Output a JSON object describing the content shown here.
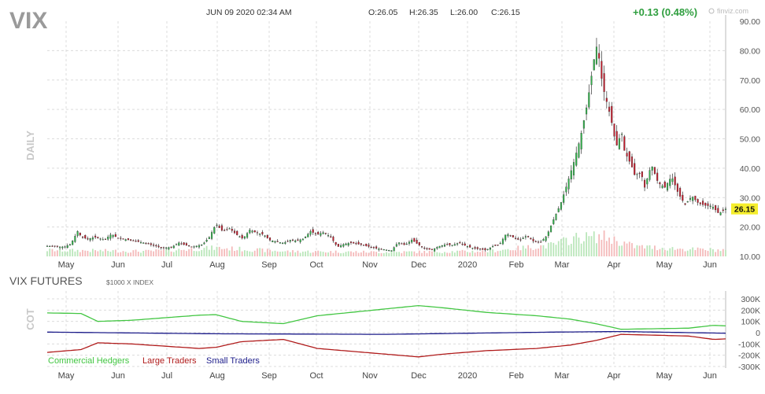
{
  "header": {
    "symbol": "VIX",
    "datetime": "JUN 09 2020 02:34 AM",
    "open": "O:26.05",
    "high": "H:26.35",
    "low": "L:26.00",
    "close": "C:26.15",
    "change": "+0.13 (0.48%)",
    "watermark": "finviz.com"
  },
  "colors": {
    "up": "#31b44b",
    "down": "#c41c2c",
    "vol_up": "#b9e6b9",
    "vol_down": "#f4b9b9",
    "commercial": "#42c642",
    "large": "#b01b1b",
    "small": "#1c1c8a",
    "grid": "#dcdcdc",
    "last_price_bg": "#f5ee2c"
  },
  "chart_data": [
    {
      "type": "candlestick",
      "title": "VIX",
      "side_label": "DAILY",
      "x_tick_labels": [
        "May",
        "Jun",
        "Jul",
        "Aug",
        "Sep",
        "Oct",
        "Nov",
        "Dec",
        "2020",
        "Feb",
        "Mar",
        "Apr",
        "May",
        "Jun"
      ],
      "y_ticks": [
        "90.00",
        "80.00",
        "70.00",
        "60.00",
        "50.00",
        "40.00",
        "30.00",
        "20.00",
        "10.00"
      ],
      "ylim": [
        10,
        90
      ],
      "last_price": "26.15",
      "close_series": [
        {
          "x": 0,
          "y": 13.5
        },
        {
          "x": 10,
          "y": 13.2
        },
        {
          "x": 14,
          "y": 14.2
        },
        {
          "x": 18,
          "y": 18.5
        },
        {
          "x": 20,
          "y": 16.8
        },
        {
          "x": 24,
          "y": 15.8
        },
        {
          "x": 28,
          "y": 16.6
        },
        {
          "x": 34,
          "y": 15.6
        },
        {
          "x": 38,
          "y": 17.6
        },
        {
          "x": 42,
          "y": 16.2
        },
        {
          "x": 46,
          "y": 15.8
        },
        {
          "x": 50,
          "y": 15.4
        },
        {
          "x": 54,
          "y": 15.0
        },
        {
          "x": 60,
          "y": 14.2
        },
        {
          "x": 64,
          "y": 13.6
        },
        {
          "x": 68,
          "y": 12.8
        },
        {
          "x": 74,
          "y": 13.2
        },
        {
          "x": 78,
          "y": 14.6
        },
        {
          "x": 82,
          "y": 13.8
        },
        {
          "x": 86,
          "y": 13.2
        },
        {
          "x": 92,
          "y": 14.0
        },
        {
          "x": 96,
          "y": 16.5
        },
        {
          "x": 100,
          "y": 21.0
        },
        {
          "x": 104,
          "y": 18.5
        },
        {
          "x": 108,
          "y": 19.5
        },
        {
          "x": 112,
          "y": 17.5
        },
        {
          "x": 116,
          "y": 16.0
        },
        {
          "x": 120,
          "y": 19.0
        },
        {
          "x": 124,
          "y": 18.0
        },
        {
          "x": 128,
          "y": 17.5
        },
        {
          "x": 132,
          "y": 15.5
        },
        {
          "x": 136,
          "y": 15.0
        },
        {
          "x": 140,
          "y": 14.5
        },
        {
          "x": 144,
          "y": 15.5
        },
        {
          "x": 148,
          "y": 15.3
        },
        {
          "x": 152,
          "y": 16.0
        },
        {
          "x": 156,
          "y": 18.5
        },
        {
          "x": 160,
          "y": 17.5
        },
        {
          "x": 164,
          "y": 18.2
        },
        {
          "x": 168,
          "y": 16.5
        },
        {
          "x": 172,
          "y": 13.2
        },
        {
          "x": 176,
          "y": 14.2
        },
        {
          "x": 180,
          "y": 14.6
        },
        {
          "x": 186,
          "y": 14.0
        },
        {
          "x": 190,
          "y": 13.4
        },
        {
          "x": 196,
          "y": 12.6
        },
        {
          "x": 200,
          "y": 12.3
        },
        {
          "x": 204,
          "y": 12.0
        },
        {
          "x": 208,
          "y": 14.8
        },
        {
          "x": 212,
          "y": 13.8
        },
        {
          "x": 216,
          "y": 15.6
        },
        {
          "x": 220,
          "y": 14.0
        },
        {
          "x": 224,
          "y": 12.6
        },
        {
          "x": 228,
          "y": 12.2
        },
        {
          "x": 232,
          "y": 13.4
        },
        {
          "x": 236,
          "y": 14.0
        },
        {
          "x": 240,
          "y": 13.8
        },
        {
          "x": 244,
          "y": 14.6
        },
        {
          "x": 248,
          "y": 13.6
        },
        {
          "x": 252,
          "y": 12.8
        },
        {
          "x": 256,
          "y": 12.5
        },
        {
          "x": 260,
          "y": 12.1
        },
        {
          "x": 264,
          "y": 13.4
        },
        {
          "x": 268,
          "y": 14.0
        },
        {
          "x": 272,
          "y": 17.8
        },
        {
          "x": 276,
          "y": 16.5
        },
        {
          "x": 280,
          "y": 15.5
        },
        {
          "x": 284,
          "y": 17.0
        },
        {
          "x": 288,
          "y": 15.2
        },
        {
          "x": 292,
          "y": 14.6
        },
        {
          "x": 296,
          "y": 17.0
        },
        {
          "x": 300,
          "y": 22.5
        },
        {
          "x": 304,
          "y": 27.5
        },
        {
          "x": 308,
          "y": 34.5
        },
        {
          "x": 312,
          "y": 42.0
        },
        {
          "x": 316,
          "y": 50.5
        },
        {
          "x": 320,
          "y": 62.0
        },
        {
          "x": 324,
          "y": 77.0
        },
        {
          "x": 326,
          "y": 82.7
        },
        {
          "x": 328,
          "y": 72.0
        },
        {
          "x": 330,
          "y": 66.0
        },
        {
          "x": 332,
          "y": 61.5
        },
        {
          "x": 334,
          "y": 57.0
        },
        {
          "x": 336,
          "y": 50.9
        },
        {
          "x": 338,
          "y": 46.8
        },
        {
          "x": 340,
          "y": 53.5
        },
        {
          "x": 342,
          "y": 46.0
        },
        {
          "x": 344,
          "y": 43.4
        },
        {
          "x": 346,
          "y": 41.2
        },
        {
          "x": 348,
          "y": 37.8
        },
        {
          "x": 352,
          "y": 38.2
        },
        {
          "x": 354,
          "y": 33.5
        },
        {
          "x": 358,
          "y": 41.2
        },
        {
          "x": 362,
          "y": 35.0
        },
        {
          "x": 366,
          "y": 33.5
        },
        {
          "x": 370,
          "y": 37.2
        },
        {
          "x": 374,
          "y": 31.3
        },
        {
          "x": 378,
          "y": 27.6
        },
        {
          "x": 382,
          "y": 30.5
        },
        {
          "x": 386,
          "y": 28.0
        },
        {
          "x": 390,
          "y": 27.3
        },
        {
          "x": 394,
          "y": 27.1
        },
        {
          "x": 398,
          "y": 24.5
        },
        {
          "x": 402,
          "y": 26.15
        }
      ],
      "volume_level": [
        {
          "x": 0,
          "y": 0.22
        },
        {
          "x": 60,
          "y": 0.18
        },
        {
          "x": 100,
          "y": 0.3
        },
        {
          "x": 140,
          "y": 0.18
        },
        {
          "x": 200,
          "y": 0.15
        },
        {
          "x": 260,
          "y": 0.18
        },
        {
          "x": 300,
          "y": 0.4
        },
        {
          "x": 312,
          "y": 0.65
        },
        {
          "x": 330,
          "y": 0.7
        },
        {
          "x": 348,
          "y": 0.35
        },
        {
          "x": 380,
          "y": 0.25
        },
        {
          "x": 402,
          "y": 0.22
        }
      ]
    },
    {
      "type": "line",
      "title": "VIX FUTURES",
      "subtitle": "$1000 X INDEX",
      "side_label": "COT",
      "x_tick_labels": [
        "May",
        "Jun",
        "Jul",
        "Aug",
        "Sep",
        "Oct",
        "Nov",
        "Dec",
        "2020",
        "Feb",
        "Mar",
        "Apr",
        "May",
        "Jun"
      ],
      "y_ticks": [
        "300K",
        "200K",
        "100K",
        "0",
        "-100K",
        "-200K",
        "-300K"
      ],
      "ylim": [
        -300000,
        300000
      ],
      "legend": [
        "Commercial Hedgers",
        "Large Traders",
        "Small Traders"
      ],
      "series": [
        {
          "name": "Commercial Hedgers",
          "points": [
            {
              "x": 0,
              "y": 175000
            },
            {
              "x": 20,
              "y": 170000
            },
            {
              "x": 30,
              "y": 100000
            },
            {
              "x": 50,
              "y": 110000
            },
            {
              "x": 90,
              "y": 155000
            },
            {
              "x": 100,
              "y": 160000
            },
            {
              "x": 115,
              "y": 100000
            },
            {
              "x": 140,
              "y": 80000
            },
            {
              "x": 160,
              "y": 150000
            },
            {
              "x": 200,
              "y": 210000
            },
            {
              "x": 220,
              "y": 240000
            },
            {
              "x": 235,
              "y": 220000
            },
            {
              "x": 260,
              "y": 180000
            },
            {
              "x": 290,
              "y": 150000
            },
            {
              "x": 310,
              "y": 120000
            },
            {
              "x": 325,
              "y": 80000
            },
            {
              "x": 340,
              "y": 30000
            },
            {
              "x": 380,
              "y": 40000
            },
            {
              "x": 395,
              "y": 65000
            },
            {
              "x": 402,
              "y": 60000
            }
          ]
        },
        {
          "name": "Large Traders",
          "points": [
            {
              "x": 0,
              "y": -175000
            },
            {
              "x": 20,
              "y": -150000
            },
            {
              "x": 30,
              "y": -90000
            },
            {
              "x": 50,
              "y": -100000
            },
            {
              "x": 90,
              "y": -140000
            },
            {
              "x": 100,
              "y": -130000
            },
            {
              "x": 115,
              "y": -80000
            },
            {
              "x": 140,
              "y": -60000
            },
            {
              "x": 160,
              "y": -140000
            },
            {
              "x": 200,
              "y": -190000
            },
            {
              "x": 220,
              "y": -215000
            },
            {
              "x": 235,
              "y": -190000
            },
            {
              "x": 260,
              "y": -160000
            },
            {
              "x": 290,
              "y": -140000
            },
            {
              "x": 310,
              "y": -110000
            },
            {
              "x": 325,
              "y": -70000
            },
            {
              "x": 340,
              "y": -15000
            },
            {
              "x": 380,
              "y": -30000
            },
            {
              "x": 395,
              "y": -60000
            },
            {
              "x": 402,
              "y": -55000
            }
          ]
        },
        {
          "name": "Small Traders",
          "points": [
            {
              "x": 0,
              "y": 5000
            },
            {
              "x": 100,
              "y": -10000
            },
            {
              "x": 200,
              "y": -15000
            },
            {
              "x": 300,
              "y": 5000
            },
            {
              "x": 340,
              "y": 10000
            },
            {
              "x": 402,
              "y": -5000
            }
          ]
        }
      ]
    }
  ]
}
